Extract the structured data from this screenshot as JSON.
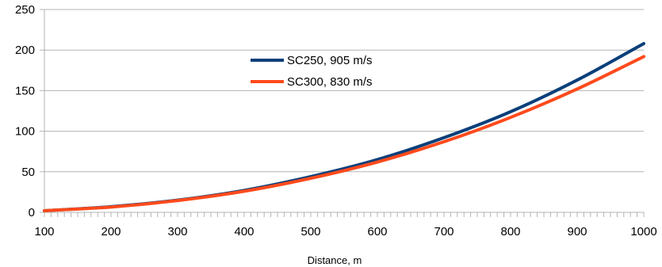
{
  "chart_data": {
    "type": "line",
    "title": "",
    "xlabel": "Distance, m",
    "ylabel": "",
    "xlim": [
      100,
      1000
    ],
    "ylim": [
      0,
      250
    ],
    "x_ticks": [
      "100",
      "200",
      "300",
      "400",
      "500",
      "600",
      "700",
      "800",
      "900",
      "1000"
    ],
    "y_ticks": [
      "0",
      "50",
      "100",
      "150",
      "200",
      "250"
    ],
    "grid": "horizontal",
    "legend_position": "top-center",
    "x": [
      100,
      200,
      300,
      400,
      500,
      600,
      700,
      800,
      900,
      1000
    ],
    "series": [
      {
        "name": "SC250, 905 m/s",
        "color": "#0b3f7a",
        "values": [
          2,
          7,
          15,
          27,
          44,
          65,
          92,
          124,
          163,
          208
        ]
      },
      {
        "name": "SC300, 830 m/s",
        "color": "#ff4a1c",
        "values": [
          2,
          6.5,
          14.5,
          26,
          42,
          62,
          87,
          117,
          152,
          192
        ]
      }
    ]
  }
}
